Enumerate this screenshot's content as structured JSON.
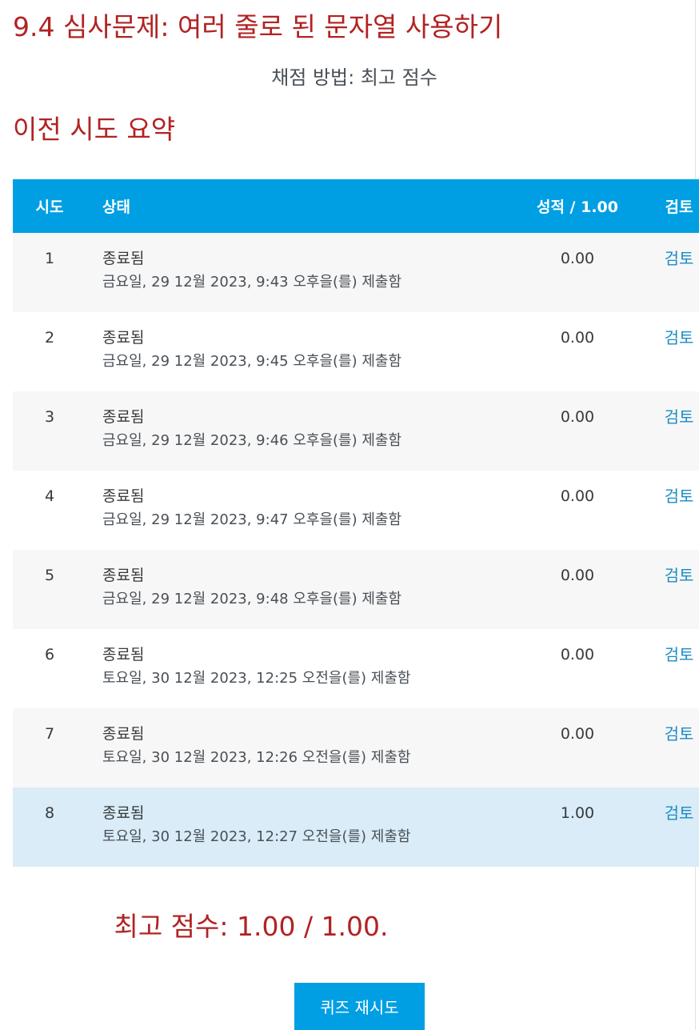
{
  "page_title": "9.4 심사문제: 여러 줄로 된 문자열 사용하기",
  "grading_method": "채점 방법: 최고 점수",
  "summary_heading": "이전 시도 요약",
  "table": {
    "headers": {
      "attempt": "시도",
      "state": "상태",
      "grade": "성적 / 1.00",
      "review": "검토"
    },
    "rows": [
      {
        "attempt": "1",
        "state": "종료됨",
        "submitted": "금요일, 29 12월 2023, 9:43 오후을(를) 제출함",
        "grade": "0.00",
        "review": "검토"
      },
      {
        "attempt": "2",
        "state": "종료됨",
        "submitted": "금요일, 29 12월 2023, 9:45 오후을(를) 제출함",
        "grade": "0.00",
        "review": "검토"
      },
      {
        "attempt": "3",
        "state": "종료됨",
        "submitted": "금요일, 29 12월 2023, 9:46 오후을(를) 제출함",
        "grade": "0.00",
        "review": "검토"
      },
      {
        "attempt": "4",
        "state": "종료됨",
        "submitted": "금요일, 29 12월 2023, 9:47 오후을(를) 제출함",
        "grade": "0.00",
        "review": "검토"
      },
      {
        "attempt": "5",
        "state": "종료됨",
        "submitted": "금요일, 29 12월 2023, 9:48 오후을(를) 제출함",
        "grade": "0.00",
        "review": "검토"
      },
      {
        "attempt": "6",
        "state": "종료됨",
        "submitted": "토요일, 30 12월 2023, 12:25 오전을(를) 제출함",
        "grade": "0.00",
        "review": "검토"
      },
      {
        "attempt": "7",
        "state": "종료됨",
        "submitted": "토요일, 30 12월 2023, 12:26 오전을(를) 제출함",
        "grade": "0.00",
        "review": "검토"
      },
      {
        "attempt": "8",
        "state": "종료됨",
        "submitted": "토요일, 30 12월 2023, 12:27 오전을(를) 제출함",
        "grade": "1.00",
        "review": "검토"
      }
    ]
  },
  "best_score": "최고 점수: 1.00 / 1.00.",
  "retry_button": "퀴즈 재시도",
  "colors": {
    "accent": "#009fe3",
    "title": "#b22222",
    "link": "#1a8bc6",
    "highlight_row": "#d9ecf7"
  }
}
